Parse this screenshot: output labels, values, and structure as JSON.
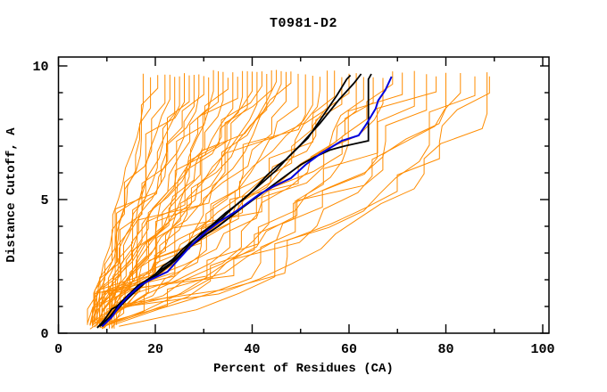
{
  "chart_data": {
    "type": "line",
    "title": "T0981-D2",
    "xlabel": "Percent of Residues (CA)",
    "ylabel": "Distance Cutoff, A",
    "xlim": [
      0,
      101.3
    ],
    "ylim": [
      0,
      10.33
    ],
    "x_major_ticks": [
      0,
      20,
      40,
      60,
      80,
      100
    ],
    "x_minor_ticks": [
      10,
      30,
      50,
      70,
      90
    ],
    "y_major_ticks": [
      0,
      5,
      10
    ],
    "y_minor_ticks": [
      1,
      2,
      3,
      4,
      6,
      7,
      8,
      9
    ],
    "grid": false,
    "legend": "none",
    "point_format": "[percent_of_residues, distance_cutoff_angstrom]",
    "colors": {
      "background": "#ffffff",
      "axis": "#000000",
      "orange_models": "#ff8c00",
      "black_models": "#000000",
      "blue_model": "#0000dd"
    },
    "series": {
      "blue_model": {
        "points": [
          [
            9,
            0.25
          ],
          [
            11,
            0.6
          ],
          [
            12.5,
            1.0
          ],
          [
            14.5,
            1.4
          ],
          [
            17,
            1.8
          ],
          [
            19,
            2.0
          ],
          [
            22.5,
            2.3
          ],
          [
            25,
            2.8
          ],
          [
            27.5,
            3.3
          ],
          [
            30.5,
            3.8
          ],
          [
            33.5,
            4.2
          ],
          [
            37,
            4.6
          ],
          [
            41.5,
            5.2
          ],
          [
            44.5,
            5.5
          ],
          [
            48,
            5.8
          ],
          [
            51,
            6.3
          ],
          [
            54,
            6.7
          ],
          [
            58.5,
            7.2
          ],
          [
            62,
            7.4
          ],
          [
            63.5,
            7.8
          ],
          [
            65.5,
            8.4
          ],
          [
            66,
            8.7
          ],
          [
            67.5,
            9.1
          ],
          [
            68.8,
            9.6
          ]
        ]
      },
      "black_models": [
        {
          "points": [
            [
              8,
              0.2
            ],
            [
              9.5,
              0.5
            ],
            [
              11,
              0.9
            ],
            [
              12,
              1.0
            ],
            [
              14,
              1.35
            ],
            [
              16.5,
              1.8
            ],
            [
              17.5,
              1.9
            ],
            [
              20,
              2.2
            ],
            [
              21.5,
              2.5
            ],
            [
              23.5,
              2.75
            ],
            [
              26,
              3.2
            ],
            [
              28,
              3.5
            ],
            [
              30,
              3.8
            ],
            [
              32,
              4.1
            ],
            [
              34.5,
              4.5
            ],
            [
              36,
              4.7
            ],
            [
              38.5,
              5.05
            ],
            [
              40.5,
              5.4
            ],
            [
              43,
              5.9
            ],
            [
              45.5,
              6.3
            ],
            [
              47,
              6.5
            ],
            [
              49.5,
              6.95
            ],
            [
              51.5,
              7.3
            ],
            [
              53,
              7.7
            ],
            [
              54.5,
              8.1
            ],
            [
              56,
              8.5
            ],
            [
              57.5,
              8.9
            ],
            [
              58.5,
              9.2
            ],
            [
              59.5,
              9.5
            ],
            [
              60.3,
              9.65
            ]
          ]
        },
        {
          "points": [
            [
              8.5,
              0.25
            ],
            [
              10.5,
              0.6
            ],
            [
              12.5,
              1.05
            ],
            [
              14.5,
              1.45
            ],
            [
              16,
              1.6
            ],
            [
              18.5,
              2.0
            ],
            [
              21,
              2.35
            ],
            [
              23,
              2.6
            ],
            [
              25.5,
              3.0
            ],
            [
              27.5,
              3.4
            ],
            [
              29.5,
              3.75
            ],
            [
              31.5,
              4.0
            ],
            [
              33.5,
              4.25
            ],
            [
              35.5,
              4.6
            ],
            [
              38,
              5.0
            ],
            [
              40,
              5.3
            ],
            [
              42.5,
              5.7
            ],
            [
              45,
              6.1
            ],
            [
              47.5,
              6.6
            ],
            [
              50,
              7.05
            ],
            [
              52,
              7.45
            ],
            [
              54,
              7.85
            ],
            [
              56,
              8.3
            ],
            [
              58,
              8.75
            ],
            [
              59.5,
              9.05
            ],
            [
              61,
              9.35
            ],
            [
              62.5,
              9.7
            ]
          ]
        },
        {
          "points": [
            [
              9,
              0.3
            ],
            [
              11.5,
              0.75
            ],
            [
              13.5,
              1.15
            ],
            [
              15.5,
              1.5
            ],
            [
              18,
              1.9
            ],
            [
              20.5,
              2.2
            ],
            [
              23,
              2.55
            ],
            [
              25.5,
              2.95
            ],
            [
              28,
              3.35
            ],
            [
              30.5,
              3.7
            ],
            [
              33,
              4.0
            ],
            [
              35.5,
              4.35
            ],
            [
              38,
              4.7
            ],
            [
              41,
              5.1
            ],
            [
              44,
              5.5
            ],
            [
              47,
              5.9
            ],
            [
              50,
              6.3
            ],
            [
              53,
              6.6
            ],
            [
              56,
              6.85
            ],
            [
              59,
              7.0
            ],
            [
              61.5,
              7.1
            ],
            [
              64,
              7.2
            ],
            [
              64,
              9.5
            ],
            [
              64.6,
              9.7
            ]
          ]
        }
      ],
      "orange_models": {
        "spec_format": "[start_percent_at_bottom, end_percent_at_top, curve_exponent, seed]",
        "lines": [
          [
            6.5,
            17.5,
            1.05,
            11
          ],
          [
            7,
            19,
            1.04,
            12
          ],
          [
            7.5,
            20.5,
            1.03,
            13
          ],
          [
            6,
            22,
            1.02,
            14
          ],
          [
            8,
            23,
            1.02,
            15
          ],
          [
            7,
            24,
            1.01,
            16
          ],
          [
            8.5,
            25,
            1.01,
            17
          ],
          [
            6.5,
            26,
            1.0,
            18
          ],
          [
            9,
            27,
            1.0,
            19
          ],
          [
            7.5,
            28,
            0.99,
            20
          ],
          [
            8,
            29,
            0.98,
            21
          ],
          [
            6,
            30,
            0.98,
            22
          ],
          [
            9.5,
            31,
            0.97,
            23
          ],
          [
            7,
            32,
            0.97,
            24
          ],
          [
            8.5,
            33,
            0.96,
            25
          ],
          [
            10,
            34,
            0.96,
            26
          ],
          [
            6.5,
            35,
            0.95,
            27
          ],
          [
            9,
            36,
            0.95,
            28
          ],
          [
            7.5,
            37,
            0.94,
            29
          ],
          [
            8,
            38,
            0.93,
            30
          ],
          [
            10.5,
            39,
            0.93,
            31
          ],
          [
            7,
            40,
            0.92,
            32
          ],
          [
            9.5,
            41,
            0.92,
            33
          ],
          [
            8,
            42,
            0.91,
            34
          ],
          [
            6.5,
            43,
            0.91,
            35
          ],
          [
            10,
            44,
            0.9,
            36
          ],
          [
            8.5,
            45,
            0.9,
            37
          ],
          [
            7,
            46,
            0.89,
            38
          ],
          [
            11,
            47,
            0.89,
            39
          ],
          [
            8,
            48,
            0.88,
            40
          ],
          [
            9.5,
            49.5,
            0.87,
            41
          ],
          [
            7.5,
            51,
            0.86,
            42
          ],
          [
            10.5,
            52.5,
            0.85,
            43
          ],
          [
            8,
            54,
            0.85,
            44
          ],
          [
            9,
            55.5,
            0.84,
            45
          ],
          [
            11.5,
            57,
            0.83,
            46
          ],
          [
            7.5,
            58.5,
            0.82,
            47
          ],
          [
            10,
            60,
            0.81,
            48
          ],
          [
            8.5,
            61.5,
            0.8,
            49
          ],
          [
            9.5,
            63,
            0.79,
            50
          ],
          [
            11,
            65,
            0.78,
            51
          ],
          [
            8,
            67,
            0.77,
            52
          ],
          [
            10.5,
            69,
            0.75,
            53
          ],
          [
            9,
            71,
            0.73,
            54
          ],
          [
            12,
            73.5,
            0.71,
            55
          ],
          [
            8.5,
            76,
            0.69,
            56
          ],
          [
            10,
            78,
            0.67,
            57
          ],
          [
            11.5,
            80,
            0.64,
            58
          ],
          [
            9,
            83,
            0.62,
            59
          ],
          [
            12.5,
            86,
            0.6,
            60
          ],
          [
            10,
            88.5,
            0.58,
            61
          ],
          [
            11,
            89,
            0.58,
            62
          ]
        ]
      }
    }
  }
}
